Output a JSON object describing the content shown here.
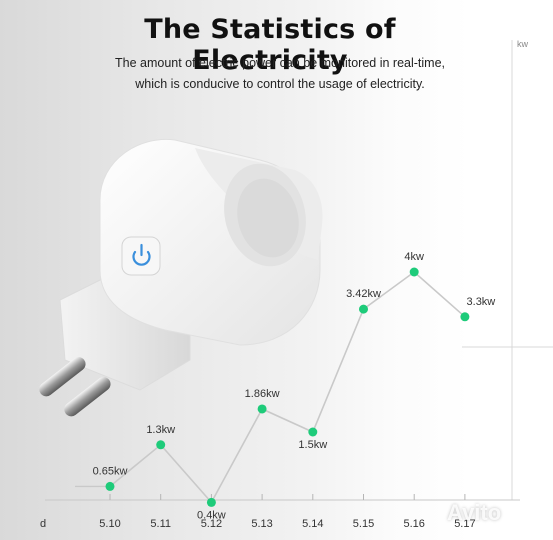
{
  "title": "The Statistics of Electricity",
  "subtitle_line1": "The amount of electric power can be monitored in real-time,",
  "subtitle_line2": "which is conducive to control the usage of electricity.",
  "y_unit": "kw",
  "x_unit": "d",
  "watermark": "Avito",
  "colors": {
    "marker": "#1ecb7a",
    "line": "#c9c9c9",
    "text": "#333333"
  },
  "chart_data": {
    "type": "line",
    "categories": [
      "5.10",
      "5.11",
      "5.12",
      "5.13",
      "5.14",
      "5.15",
      "5.16",
      "5.17"
    ],
    "values": [
      0.65,
      1.3,
      0.4,
      1.86,
      1.5,
      3.42,
      4,
      3.3
    ],
    "data_labels": [
      "0.65kw",
      "1.3kw",
      "0.4kw",
      "1.86kw",
      "1.5kw",
      "3.42kw",
      "4kw",
      "3.3kw"
    ],
    "xlabel": "d",
    "ylabel": "kw",
    "ylim": [
      0,
      4.5
    ]
  }
}
